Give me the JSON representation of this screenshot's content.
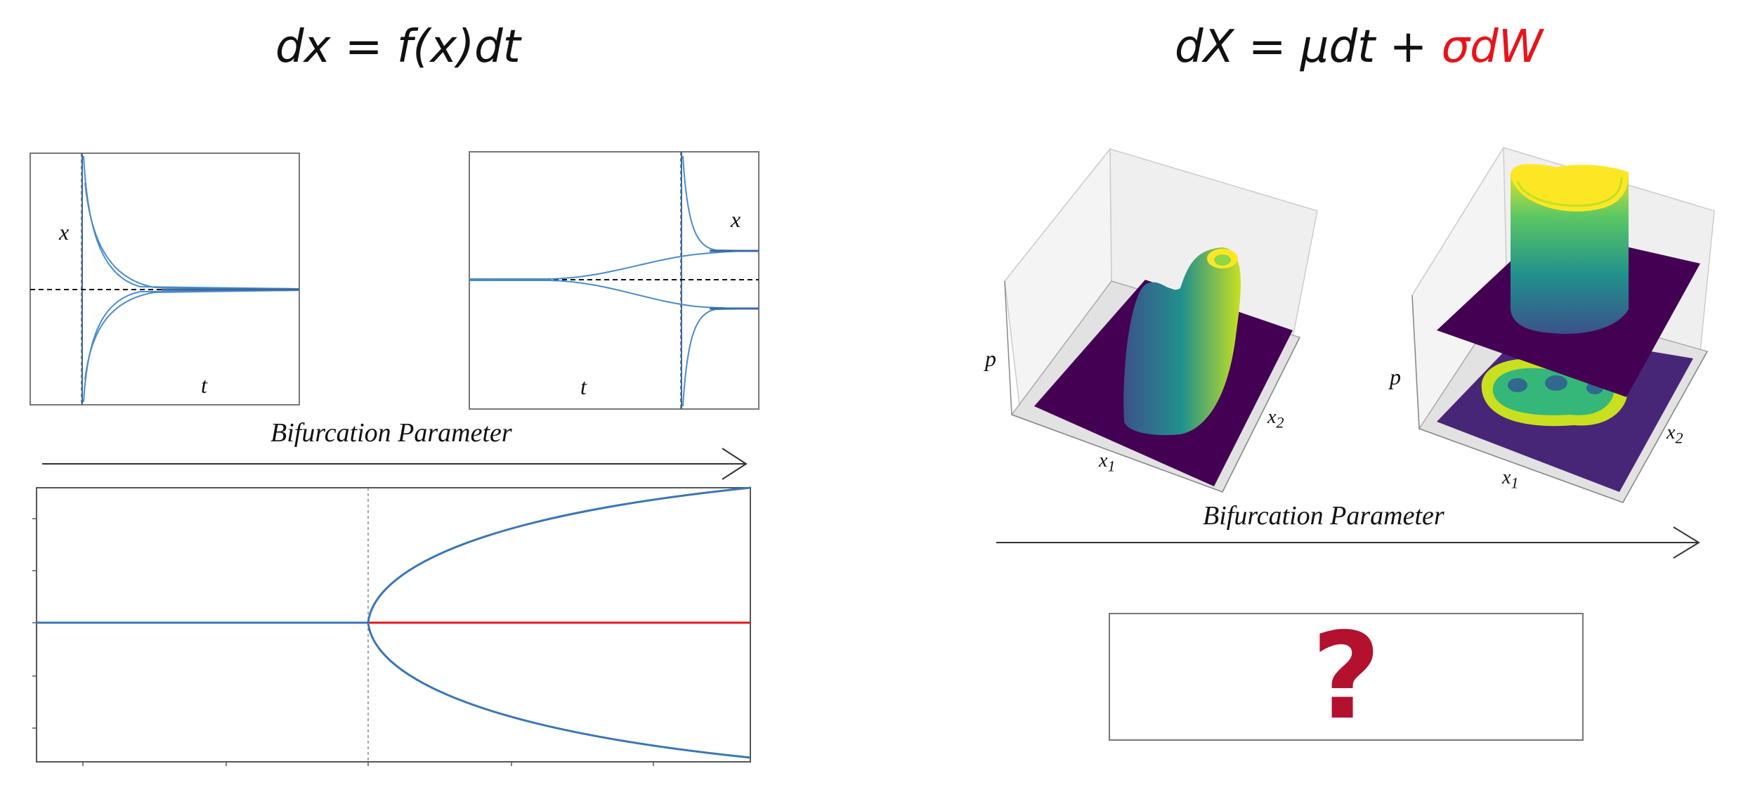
{
  "left_equation": {
    "lhs": "dx",
    "eq": "=",
    "rhs": "f(x)dt"
  },
  "right_equation": {
    "lhs": "dX",
    "eq": "=",
    "drift": "μdt",
    "plus": "+",
    "noise": "σdW"
  },
  "colors": {
    "trajectory": "#4a8bc9",
    "stable_branch": "#3a76b4",
    "unstable_branch": "#e8141b",
    "question_mark": "#b3112e",
    "noise_term": "#e8141b"
  },
  "top_left_plot": {
    "y_label": "x",
    "x_label": "t"
  },
  "top_right_plot": {
    "y_label": "x",
    "x_label": "t"
  },
  "left_arrow_label": "Bifurcation Parameter",
  "right_arrow_label": "Bifurcation Parameter",
  "surface_plot_1": {
    "z_label": "p",
    "x_label": "x",
    "x_sub": "1",
    "y_label": "x",
    "y_sub": "2"
  },
  "surface_plot_2": {
    "z_label": "p",
    "x_label": "x",
    "x_sub": "1",
    "y_label": "x",
    "y_sub": "2"
  },
  "unknown_box": {
    "symbol": "?"
  }
}
